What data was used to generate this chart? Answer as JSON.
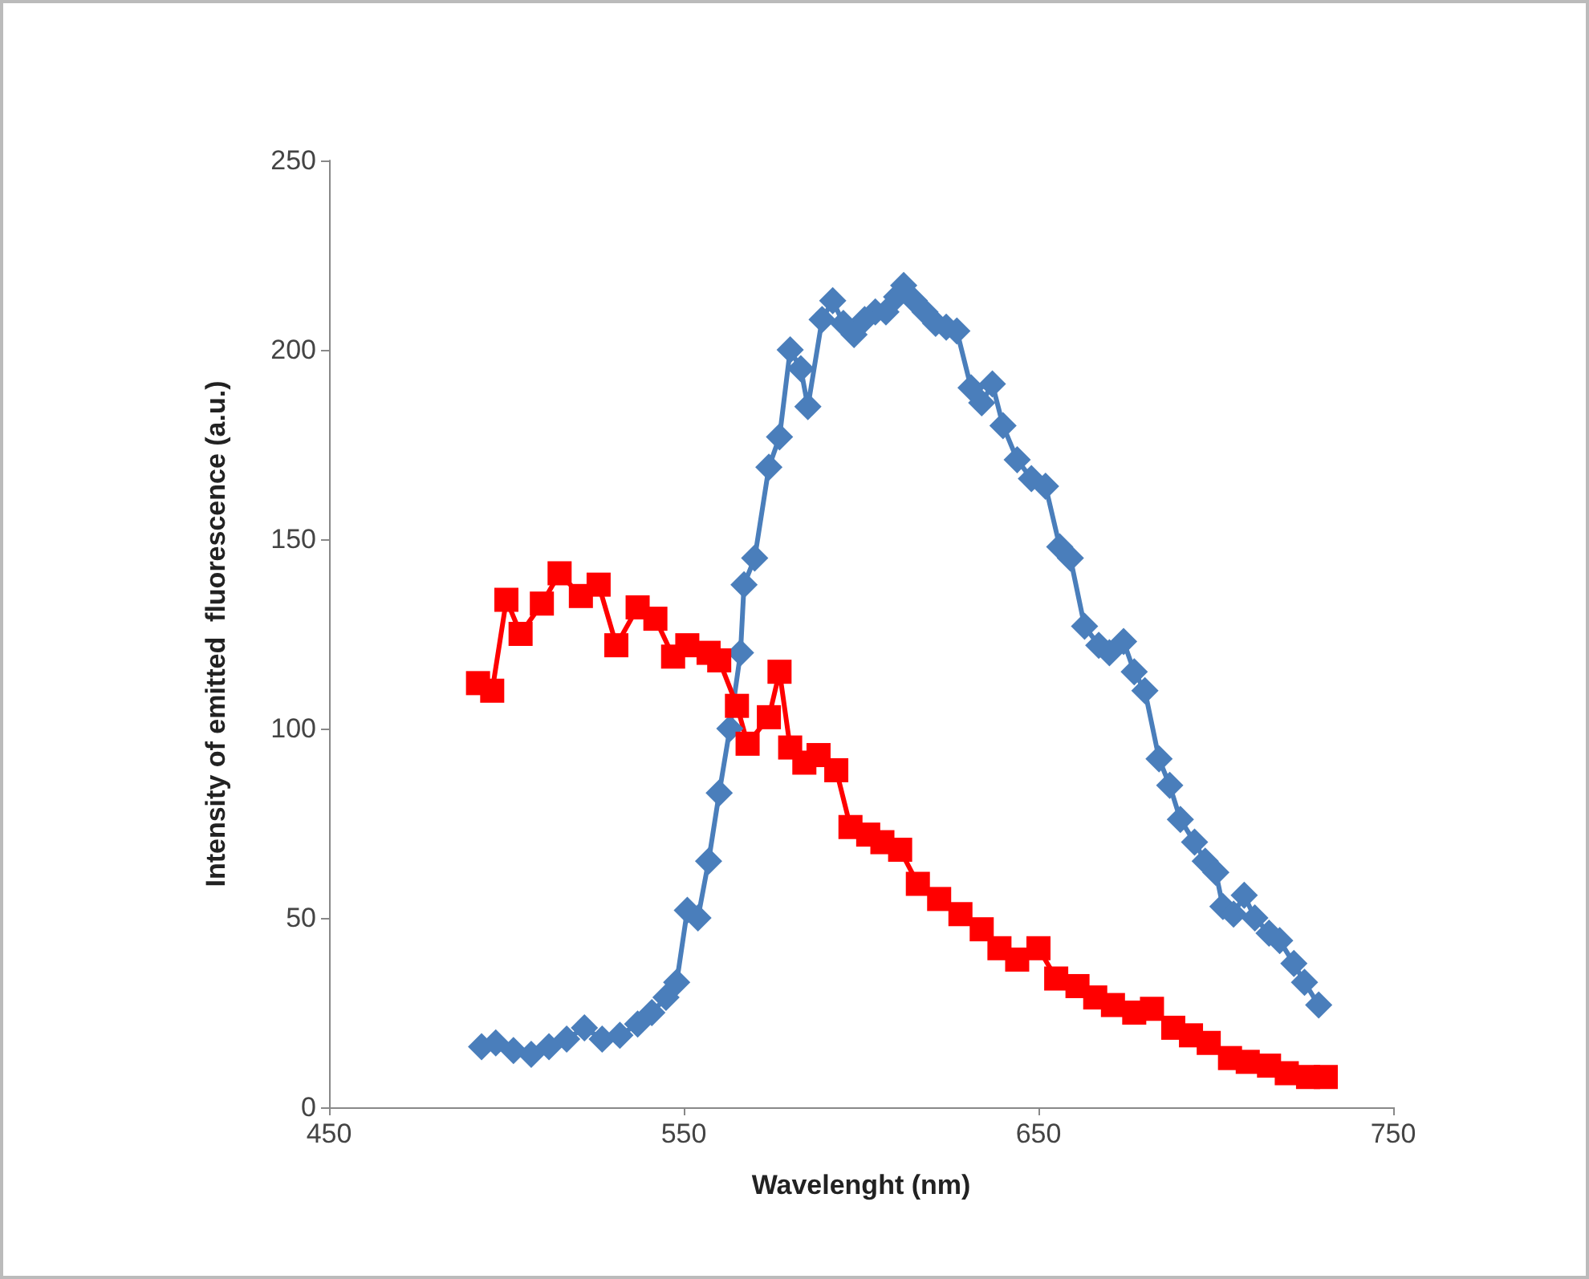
{
  "chart_data": {
    "type": "line",
    "xlabel": "Wavelenght (nm)",
    "ylabel": "Intensity of emitted  fluorescence (a.u.)",
    "xlim": [
      450,
      750
    ],
    "xticks": [
      450,
      550,
      650,
      750
    ],
    "ylim": [
      0,
      250
    ],
    "yticks": [
      0,
      50,
      100,
      150,
      200,
      250
    ],
    "line_style": "solid",
    "series": [
      {
        "color": "#4a7ebb",
        "marker": "diamond",
        "x": [
          493,
          497,
          502,
          507,
          512,
          517,
          522,
          527,
          532,
          537,
          541,
          545,
          548,
          551,
          554,
          557,
          560,
          563,
          566,
          567,
          570,
          574,
          577,
          580,
          583,
          585,
          589,
          592,
          595,
          598,
          601,
          604,
          607,
          610,
          612,
          615,
          618,
          621,
          624,
          627,
          631,
          634,
          637,
          640,
          644,
          648,
          652,
          656,
          659,
          663,
          667,
          670,
          674,
          677,
          680,
          684,
          687,
          690,
          694,
          697,
          700,
          702,
          705,
          708,
          711,
          715,
          718,
          722,
          725,
          729
        ],
        "values": [
          16,
          17,
          15,
          14,
          16,
          18,
          21,
          18,
          19,
          22,
          25,
          29,
          33,
          52,
          50,
          65,
          83,
          100,
          120,
          138,
          145,
          169,
          177,
          200,
          195,
          185,
          208,
          213,
          207,
          204,
          208,
          210,
          210,
          214,
          217,
          213,
          210,
          207,
          206,
          205,
          190,
          186,
          191,
          180,
          171,
          166,
          164,
          148,
          145,
          127,
          122,
          120,
          123,
          115,
          110,
          92,
          85,
          76,
          70,
          65,
          62,
          53,
          51,
          56,
          50,
          46,
          44,
          38,
          33,
          27
        ]
      },
      {
        "color": "#ff0000",
        "marker": "square",
        "x": [
          492,
          496,
          500,
          504,
          510,
          515,
          521,
          526,
          531,
          537,
          542,
          547,
          551,
          557,
          560,
          565,
          568,
          574,
          577,
          580,
          584,
          588,
          593,
          597,
          602,
          606,
          611,
          616,
          622,
          628,
          634,
          639,
          644,
          650,
          655,
          661,
          666,
          671,
          677,
          682,
          688,
          693,
          698,
          704,
          709,
          715,
          720,
          726,
          731
        ],
        "values": [
          112,
          110,
          134,
          125,
          133,
          141,
          135,
          138,
          122,
          132,
          129,
          119,
          122,
          120,
          118,
          106,
          96,
          103,
          115,
          95,
          91,
          93,
          89,
          74,
          72,
          70,
          68,
          59,
          55,
          51,
          47,
          42,
          39,
          42,
          34,
          32,
          29,
          27,
          25,
          26,
          21,
          19,
          17,
          13,
          12,
          11,
          9,
          8,
          8
        ]
      }
    ]
  }
}
